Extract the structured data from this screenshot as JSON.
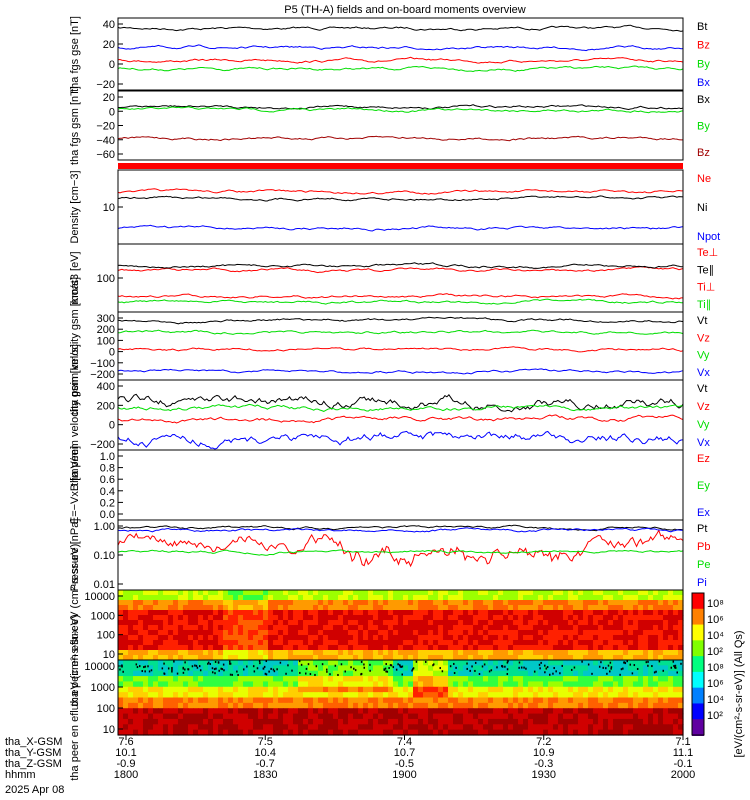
{
  "title": "P5 (TH-A) fields and on-board moments overview",
  "colorbar_label": "[eV/(cm²-s-sr-eV)] (All Qs)",
  "colorbar_ticks": [
    "10⁸",
    "10⁶",
    "10⁴",
    "10²",
    "10⁸",
    "10⁶",
    "10⁴",
    "10²"
  ],
  "date": "2025 Apr 08",
  "footer": {
    "row_labels": [
      "tha_X-GSM",
      "tha_Y-GSM",
      "tha_Z-GSM",
      "hhmm"
    ],
    "cols": [
      [
        "7.6",
        "10.1",
        "-0.9",
        "1800"
      ],
      [
        "7.5",
        "10.4",
        "-0.7",
        "1830"
      ],
      [
        "7.4",
        "10.7",
        "-0.5",
        "1900"
      ],
      [
        "7.2",
        "10.9",
        "-0.3",
        "1930"
      ],
      [
        "7.1",
        "11.1",
        "-0.1",
        "2000"
      ]
    ]
  },
  "colors": {
    "black": "#000000",
    "red": "#ff0000",
    "blue": "#0000ff",
    "green": "#00dd00",
    "darkred": "#a00000"
  },
  "chart_data": [
    {
      "type": "line",
      "ylabel": "tha fgs gse [nT]",
      "yticks": [
        "40",
        "20",
        "0",
        "−20"
      ],
      "ylim": [
        -40,
        45
      ],
      "x_range": [
        "1800",
        "2000"
      ],
      "series": [
        {
          "name": "Bt",
          "color": "black",
          "level": 33
        },
        {
          "name": "Bz",
          "color": "red",
          "level": -5
        },
        {
          "name": "By",
          "color": "green",
          "level": -15
        },
        {
          "name": "Bx",
          "color": "blue",
          "level": 10
        }
      ]
    },
    {
      "type": "line",
      "ylabel": "tha fgs gsm [nT]",
      "yticks": [
        "20",
        "0",
        "−20",
        "−40",
        "−60"
      ],
      "ylim": [
        -80,
        30
      ],
      "series": [
        {
          "name": "Bx",
          "color": "black",
          "level": 5
        },
        {
          "name": "By",
          "color": "green",
          "level": 0
        },
        {
          "name": "Bz",
          "color": "darkred",
          "level": -45
        }
      ]
    },
    {
      "type": "line",
      "ylabel": "Density [cm−3]",
      "yticks": [
        "10"
      ],
      "log": true,
      "series": [
        {
          "name": "Ne",
          "color": "red"
        },
        {
          "name": "Ni",
          "color": "black"
        },
        {
          "name": "Npot",
          "color": "blue"
        }
      ]
    },
    {
      "type": "line",
      "ylabel": "moat3 [eV]",
      "yticks": [
        "100"
      ],
      "log": true,
      "series": [
        {
          "name": "Te⊥",
          "color": "red"
        },
        {
          "name": "Te∥",
          "color": "black"
        },
        {
          "name": "Ti⊥",
          "color": "red"
        },
        {
          "name": "Ti∥",
          "color": "green"
        }
      ]
    },
    {
      "type": "line",
      "ylabel": "tha peim velocity gsm [km/s]",
      "yticks": [
        "300",
        "200",
        "100",
        "0",
        "−100",
        "−200"
      ],
      "ylim": [
        -250,
        320
      ],
      "series": [
        {
          "name": "Vt",
          "color": "black",
          "level": 250
        },
        {
          "name": "Vz",
          "color": "red",
          "level": 10
        },
        {
          "name": "Vy",
          "color": "green",
          "level": 150
        },
        {
          "name": "Vx",
          "color": "blue",
          "level": -180
        }
      ]
    },
    {
      "type": "line",
      "ylabel": "tha peem velocity gsm [km/s]",
      "yticks": [
        "400",
        "200",
        "0",
        "−200"
      ],
      "ylim": [
        -300,
        450
      ],
      "series": [
        {
          "name": "Vt",
          "color": "black",
          "level": 230
        },
        {
          "name": "Vz",
          "color": "red",
          "level": 30
        },
        {
          "name": "Vy",
          "color": "green",
          "level": 150
        },
        {
          "name": "Vx",
          "color": "blue",
          "level": -170
        }
      ]
    },
    {
      "type": "line",
      "ylabel": "E=−VxB [mV/m]",
      "yticks": [
        "1.0",
        "0.8",
        "0.6",
        "0.4",
        "0.2",
        "0.0"
      ],
      "ylim": [
        0,
        1
      ],
      "series": [
        {
          "name": "Ez",
          "color": "red"
        },
        {
          "name": "Ey",
          "color": "green"
        },
        {
          "name": "Ex",
          "color": "blue"
        }
      ]
    },
    {
      "type": "line",
      "ylabel": "Pressure [nPa]",
      "yticks": [
        "1.00",
        "0.10",
        "0.01"
      ],
      "log": true,
      "series": [
        {
          "name": "Pt",
          "color": "black"
        },
        {
          "name": "Pb",
          "color": "red"
        },
        {
          "name": "Pe",
          "color": "green"
        },
        {
          "name": "Pi",
          "color": "blue"
        }
      ]
    },
    {
      "type": "heatmap",
      "ylabel": "tha peir en eflux eV (cm²-s-sr-eV)",
      "yticks": [
        "10000",
        "1000",
        "100",
        "10"
      ],
      "log": true
    },
    {
      "type": "heatmap",
      "ylabel": "tha peer en eflux eV (cm²-s-sr-eV)",
      "yticks": [
        "10000",
        "1000",
        "100",
        "10"
      ],
      "log": true
    }
  ]
}
